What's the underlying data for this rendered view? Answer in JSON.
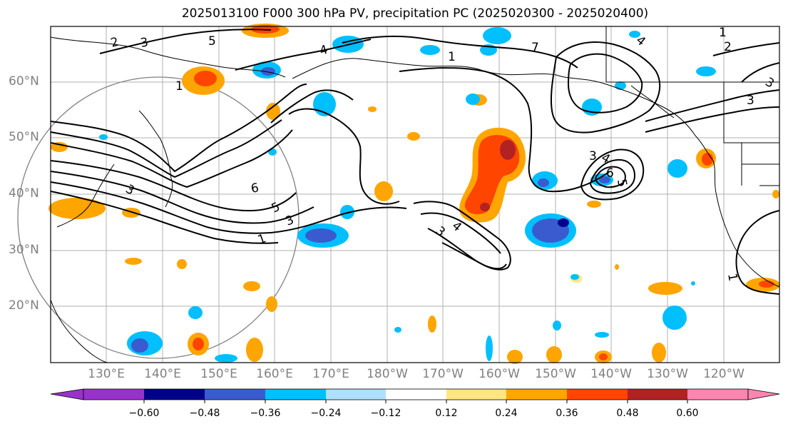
{
  "title": "2025013100 F000 300 hPa PV, precipitation PC (2025020300 - 2025020400)",
  "lat_labels": [
    "60°N",
    "50°N",
    "40°N",
    "30°N",
    "20°N"
  ],
  "lon_labels": [
    "130°E",
    "140°E",
    "150°E",
    "160°E",
    "170°E",
    "180°W",
    "170°W",
    "160°W",
    "150°W",
    "140°W",
    "130°W",
    "120°W"
  ],
  "colorbar": {
    "ticks": [
      "−0.60",
      "−0.48",
      "−0.36",
      "−0.24",
      "−0.12",
      "0.12",
      "0.24",
      "0.36",
      "0.48",
      "0.60"
    ],
    "colors": [
      "#9932cc",
      "#00008b",
      "#3a5bd0",
      "#00bfff",
      "#b0e0ff",
      "#ffffff",
      "#ffe680",
      "#ffa500",
      "#ff4500",
      "#b22222",
      "#ff85b0"
    ]
  },
  "contour_labels": [
    "2",
    "3",
    "5",
    "4",
    "1",
    "7",
    "1",
    "2",
    "1",
    "4",
    "3",
    "6",
    "5",
    "3",
    "1",
    "3",
    "3",
    "4",
    "6",
    "5",
    "3",
    "4",
    "1",
    "3"
  ]
}
